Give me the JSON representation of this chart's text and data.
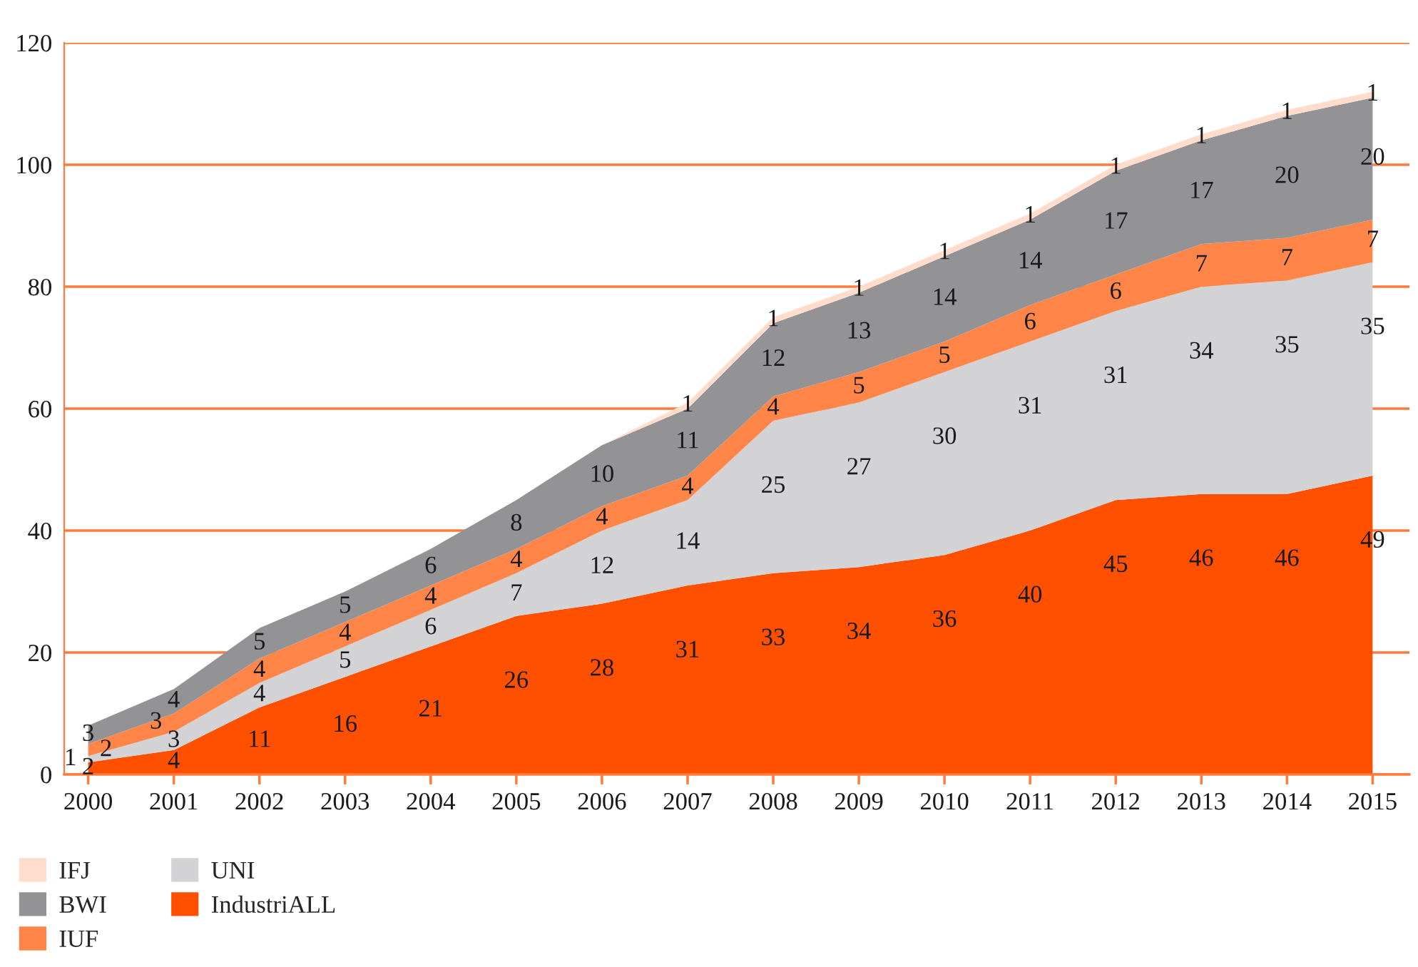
{
  "chart_data": {
    "type": "area",
    "stacked": true,
    "categories": [
      "2000",
      "2001",
      "2002",
      "2003",
      "2004",
      "2005",
      "2006",
      "2007",
      "2008",
      "2009",
      "2010",
      "2011",
      "2012",
      "2013",
      "2014",
      "2015"
    ],
    "series": [
      {
        "name": "IndustriALL",
        "color": "#ff5000",
        "values": [
          2,
          4,
          11,
          16,
          21,
          26,
          28,
          31,
          33,
          34,
          36,
          40,
          45,
          46,
          46,
          49
        ]
      },
      {
        "name": "UNI",
        "color": "#d3d3d5",
        "values": [
          1,
          3,
          4,
          5,
          6,
          7,
          12,
          14,
          25,
          27,
          30,
          31,
          31,
          34,
          35,
          35
        ]
      },
      {
        "name": "IUF",
        "color": "#ff8548",
        "values": [
          2,
          3,
          4,
          4,
          4,
          4,
          4,
          4,
          4,
          5,
          5,
          6,
          6,
          7,
          7,
          7
        ]
      },
      {
        "name": "BWI",
        "color": "#939396",
        "values": [
          3,
          4,
          5,
          5,
          6,
          8,
          10,
          11,
          12,
          13,
          14,
          14,
          17,
          17,
          20,
          20
        ]
      },
      {
        "name": "IFJ",
        "color": "#ffdccc",
        "values": [
          0,
          0,
          0,
          0,
          0,
          0,
          0,
          1,
          1,
          1,
          1,
          1,
          1,
          1,
          1,
          1
        ],
        "value_labels": [
          null,
          null,
          null,
          null,
          null,
          null,
          null,
          "1",
          "1",
          "1",
          "1",
          "1",
          "1",
          "1",
          "1",
          "1"
        ]
      }
    ],
    "data_labels": true,
    "ylim": [
      0,
      120
    ],
    "yticks": [
      0,
      20,
      40,
      60,
      80,
      100,
      120
    ],
    "grid": "y",
    "legend": "bottom left"
  }
}
